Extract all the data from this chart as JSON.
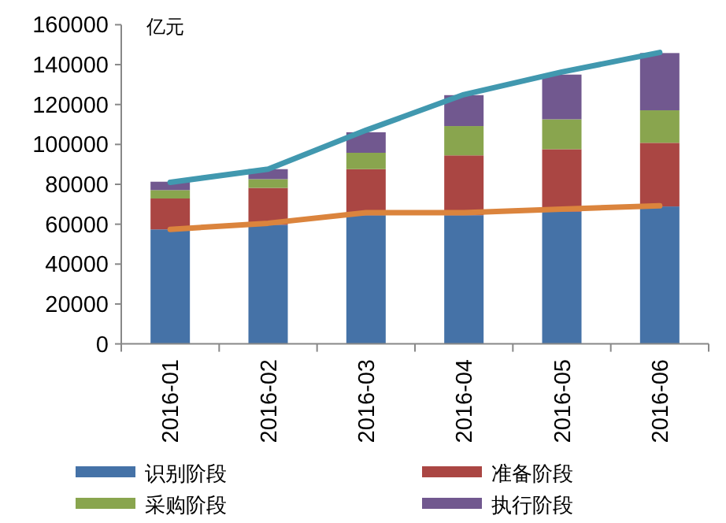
{
  "chart_data": {
    "type": "bar",
    "stacked": true,
    "ylabel": "亿元",
    "categories": [
      "2016-01",
      "2016-02",
      "2016-03",
      "2016-04",
      "2016-05",
      "2016-06"
    ],
    "ylim": [
      0,
      160000
    ],
    "yticks": [
      0,
      20000,
      40000,
      60000,
      80000,
      100000,
      120000,
      140000,
      160000
    ],
    "legend": "bottom",
    "marker": "none",
    "grid": false,
    "series": [
      {
        "name": "识别阶段",
        "color": "#4572a7",
        "values": [
          57400,
          59700,
          64500,
          64500,
          66300,
          68900
        ]
      },
      {
        "name": "准备阶段",
        "color": "#aa4643",
        "values": [
          15500,
          18500,
          23100,
          30000,
          31300,
          31900
        ]
      },
      {
        "name": "采购阶段",
        "color": "#89a54e",
        "values": [
          4200,
          4400,
          8200,
          14700,
          15000,
          16300
        ]
      },
      {
        "name": "执行阶段",
        "color": "#71588f",
        "values": [
          4200,
          5000,
          10300,
          15500,
          22400,
          28700
        ]
      },
      {
        "type": "line",
        "color": "#4198af",
        "values": [
          81000,
          87600,
          107100,
          125000,
          136300,
          146100
        ]
      },
      {
        "type": "line",
        "color": "#db843d",
        "values": [
          57400,
          60500,
          65800,
          65800,
          67600,
          69200
        ]
      }
    ]
  }
}
